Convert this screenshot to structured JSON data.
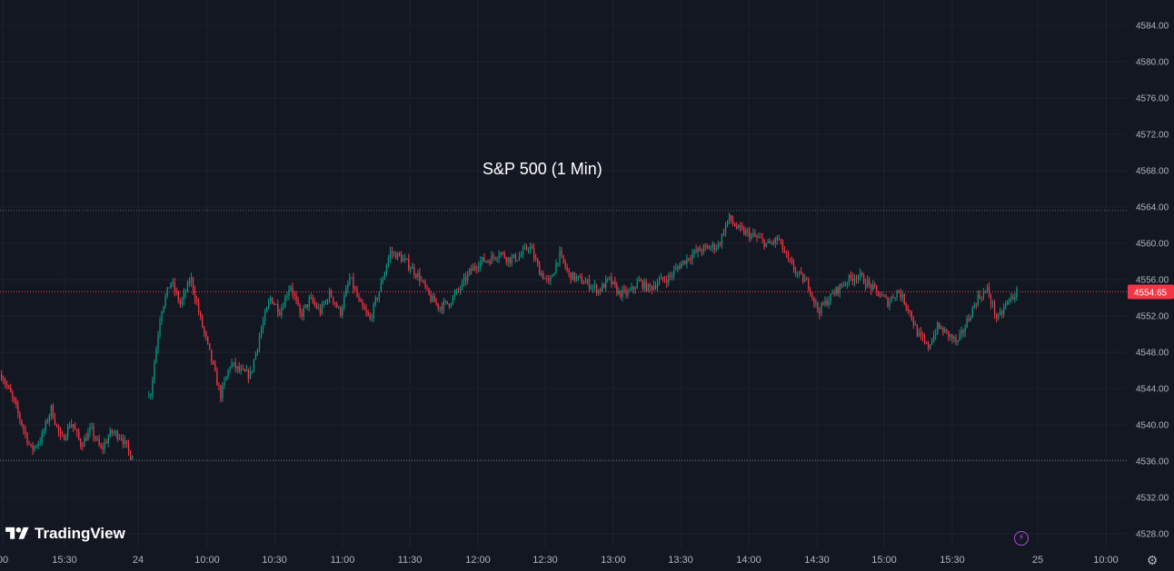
{
  "chart_data": {
    "type": "candlestick",
    "title": "S&P 500 (1 Min)",
    "brand": "TradingView",
    "y_ticks": [
      "4584.00",
      "4580.00",
      "4576.00",
      "4572.00",
      "4568.00",
      "4564.00",
      "4560.00",
      "4556.00",
      "4552.00",
      "4548.00",
      "4544.00",
      "4540.00",
      "4536.00",
      "4532.00",
      "4528.00"
    ],
    "x_ticks": [
      "00",
      "15:30",
      "24",
      "10:00",
      "10:30",
      "11:00",
      "11:30",
      "12:00",
      "12:30",
      "13:00",
      "13:30",
      "14:00",
      "14:30",
      "15:00",
      "15:30",
      "25",
      "10:00"
    ],
    "ylim": [
      4527,
      4586
    ],
    "last_price": "4554.65",
    "last_price_value": 4554.65,
    "reference_lines": [
      {
        "value": 4563.6,
        "color": "#787b86"
      },
      {
        "value": 4536.1,
        "color": "#787b86"
      }
    ],
    "grid": true,
    "colors": {
      "up": "#089981",
      "down": "#f23645",
      "background": "#131722",
      "text": "#b2b5be",
      "price_label": "#f23645"
    },
    "price_path": [
      {
        "t": 0,
        "p": 4545.5
      },
      {
        "t": 2,
        "p": 4543.2
      },
      {
        "t": 4,
        "p": 4540.2
      },
      {
        "t": 6,
        "p": 4537.2
      },
      {
        "t": 8,
        "p": 4538.5
      },
      {
        "t": 10,
        "p": 4541.8
      },
      {
        "t": 12,
        "p": 4538.2
      },
      {
        "t": 14,
        "p": 4540.3
      },
      {
        "t": 16,
        "p": 4537.8
      },
      {
        "t": 18,
        "p": 4539.5
      },
      {
        "t": 20,
        "p": 4537.2
      },
      {
        "t": 22,
        "p": 4539.2
      },
      {
        "t": 24,
        "p": 4538.8
      },
      {
        "t": 26,
        "p": 4536.5
      },
      {
        "t": 30,
        "p": 4543.8
      },
      {
        "t": 32,
        "p": 4552.5
      },
      {
        "t": 34,
        "p": 4555.8
      },
      {
        "t": 36,
        "p": 4553.2
      },
      {
        "t": 38,
        "p": 4556.2
      },
      {
        "t": 40,
        "p": 4551.5
      },
      {
        "t": 42,
        "p": 4547.5
      },
      {
        "t": 44,
        "p": 4543.2
      },
      {
        "t": 46,
        "p": 4546.8
      },
      {
        "t": 48,
        "p": 4545.8
      },
      {
        "t": 50,
        "p": 4545.5
      },
      {
        "t": 52,
        "p": 4550.2
      },
      {
        "t": 54,
        "p": 4554.0
      },
      {
        "t": 56,
        "p": 4552.5
      },
      {
        "t": 58,
        "p": 4555.5
      },
      {
        "t": 60,
        "p": 4552.0
      },
      {
        "t": 62,
        "p": 4553.8
      },
      {
        "t": 64,
        "p": 4552.5
      },
      {
        "t": 66,
        "p": 4554.5
      },
      {
        "t": 68,
        "p": 4552.3
      },
      {
        "t": 70,
        "p": 4556.2
      },
      {
        "t": 72,
        "p": 4553.2
      },
      {
        "t": 74,
        "p": 4551.6
      },
      {
        "t": 76,
        "p": 4555.0
      },
      {
        "t": 78,
        "p": 4559.0
      },
      {
        "t": 80,
        "p": 4558.5
      },
      {
        "t": 82,
        "p": 4557.5
      },
      {
        "t": 84,
        "p": 4556.2
      },
      {
        "t": 86,
        "p": 4554.0
      },
      {
        "t": 88,
        "p": 4553.0
      },
      {
        "t": 90,
        "p": 4553.5
      },
      {
        "t": 92,
        "p": 4555.0
      },
      {
        "t": 94,
        "p": 4556.8
      },
      {
        "t": 96,
        "p": 4558.0
      },
      {
        "t": 98,
        "p": 4558.2
      },
      {
        "t": 100,
        "p": 4559.0
      },
      {
        "t": 102,
        "p": 4558.2
      },
      {
        "t": 104,
        "p": 4558.5
      },
      {
        "t": 106,
        "p": 4559.8
      },
      {
        "t": 108,
        "p": 4557.0
      },
      {
        "t": 110,
        "p": 4555.5
      },
      {
        "t": 112,
        "p": 4558.8
      },
      {
        "t": 114,
        "p": 4556.5
      },
      {
        "t": 116,
        "p": 4556.0
      },
      {
        "t": 118,
        "p": 4555.5
      },
      {
        "t": 120,
        "p": 4554.8
      },
      {
        "t": 122,
        "p": 4556.0
      },
      {
        "t": 124,
        "p": 4554.5
      },
      {
        "t": 126,
        "p": 4554.5
      },
      {
        "t": 128,
        "p": 4555.8
      },
      {
        "t": 130,
        "p": 4555.0
      },
      {
        "t": 132,
        "p": 4555.8
      },
      {
        "t": 134,
        "p": 4556.2
      },
      {
        "t": 136,
        "p": 4557.5
      },
      {
        "t": 138,
        "p": 4558.5
      },
      {
        "t": 140,
        "p": 4559.2
      },
      {
        "t": 142,
        "p": 4559.5
      },
      {
        "t": 144,
        "p": 4559.8
      },
      {
        "t": 146,
        "p": 4562.8
      },
      {
        "t": 148,
        "p": 4561.5
      },
      {
        "t": 150,
        "p": 4561.0
      },
      {
        "t": 152,
        "p": 4560.5
      },
      {
        "t": 154,
        "p": 4559.8
      },
      {
        "t": 156,
        "p": 4560.5
      },
      {
        "t": 158,
        "p": 4558.0
      },
      {
        "t": 160,
        "p": 4556.5
      },
      {
        "t": 162,
        "p": 4555.5
      },
      {
        "t": 164,
        "p": 4552.5
      },
      {
        "t": 166,
        "p": 4553.8
      },
      {
        "t": 168,
        "p": 4555.0
      },
      {
        "t": 170,
        "p": 4556.0
      },
      {
        "t": 172,
        "p": 4556.5
      },
      {
        "t": 174,
        "p": 4555.5
      },
      {
        "t": 176,
        "p": 4554.5
      },
      {
        "t": 178,
        "p": 4553.5
      },
      {
        "t": 180,
        "p": 4554.8
      },
      {
        "t": 182,
        "p": 4553.0
      },
      {
        "t": 184,
        "p": 4550.0
      },
      {
        "t": 186,
        "p": 4548.5
      },
      {
        "t": 188,
        "p": 4550.8
      },
      {
        "t": 190,
        "p": 4550.0
      },
      {
        "t": 192,
        "p": 4549.0
      },
      {
        "t": 194,
        "p": 4551.5
      },
      {
        "t": 196,
        "p": 4554.0
      },
      {
        "t": 198,
        "p": 4554.8
      },
      {
        "t": 200,
        "p": 4551.5
      },
      {
        "t": 202,
        "p": 4553.5
      },
      {
        "t": 204,
        "p": 4554.65
      }
    ]
  }
}
